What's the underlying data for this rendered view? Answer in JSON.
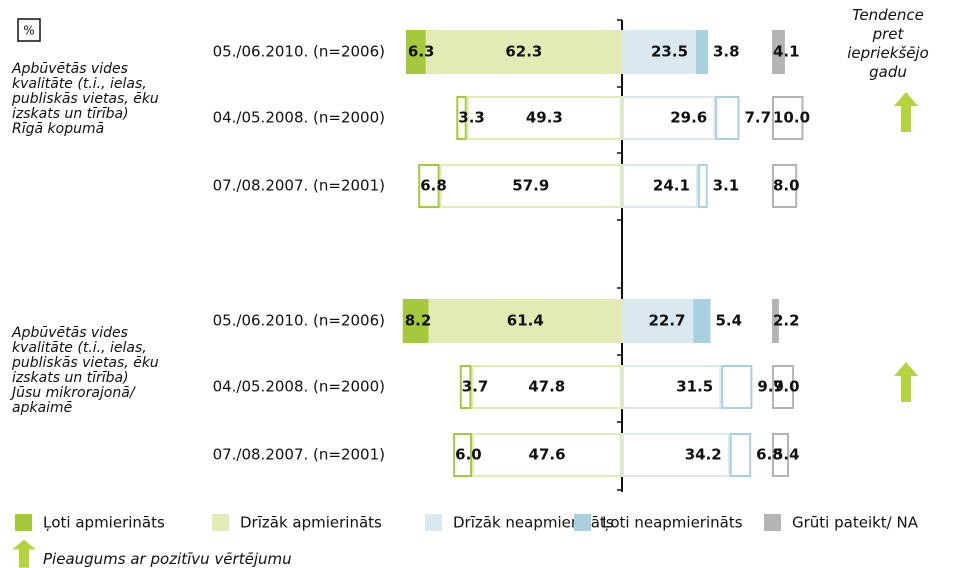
{
  "chart_data": {
    "type": "diverging_bar",
    "unit_label": "%",
    "trend_title": "Tendence pret iepriekšējo gadu",
    "trend_legend": "Pieaugums ar pozitīvu vērtējumu",
    "groups": [
      {
        "label": "Apbūvētās vides kvalitāte (t.i., ielas, publiskās vietas, ēku izskats un tīrība) Rīgā kopumā",
        "categories": [
          "05./06.2010. (n=2006)",
          "04./05.2008. (n=2000)",
          "07./08.2007. (n=2001)"
        ],
        "trend": "up"
      },
      {
        "label": "Apbūvētās vides kvalitāte (t.i., ielas, publiskās vietas, ēku izskats un tīrība) Jūsu mikrorajonā/ apkaimē",
        "categories": [
          "05./06.2010. (n=2006)",
          "04./05.2008. (n=2000)",
          "07./08.2007. (n=2001)"
        ],
        "trend": "up"
      }
    ],
    "series": [
      {
        "name": "Ļoti apmierināts",
        "color": "#a5c83c",
        "side": "left",
        "values": [
          6.3,
          3.3,
          6.8,
          8.2,
          3.7,
          6.0
        ],
        "value_labels": [
          "6.3",
          "3.3",
          "6.8",
          "8.2",
          "3.7",
          "6.0"
        ]
      },
      {
        "name": "Drīzāk apmierināts",
        "color": "#e1ebb3",
        "side": "left",
        "values": [
          62.3,
          49.3,
          57.9,
          61.4,
          47.8,
          47.6
        ]
      },
      {
        "name": "Drīzāk neapmierināts",
        "color": "#dce8ef",
        "side": "right",
        "values": [
          23.5,
          29.6,
          24.1,
          22.7,
          31.5,
          34.2
        ]
      },
      {
        "name": "Ļoti neapmierināts",
        "color": "#a9d0de",
        "side": "right",
        "values": [
          3.8,
          7.7,
          3.1,
          5.4,
          9.9,
          6.8
        ]
      },
      {
        "name": "Grūti pateikt/ NA",
        "color": "#b4b4b4",
        "side": "separate",
        "values": [
          4.1,
          10.0,
          8.0,
          2.2,
          7.0,
          5.4
        ],
        "value_labels": [
          "4.1",
          "10.0",
          "8.0",
          "2.2",
          "7.0",
          "5.4"
        ]
      }
    ]
  }
}
